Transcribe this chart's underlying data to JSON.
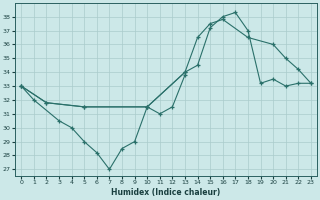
{
  "xlabel": "Humidex (Indice chaleur)",
  "background_color": "#cce8e8",
  "grid_color": "#aacccc",
  "line_color": "#2a706a",
  "xlim": [
    -0.5,
    23.5
  ],
  "ylim": [
    26.5,
    39.0
  ],
  "yticks": [
    27,
    28,
    29,
    30,
    31,
    32,
    33,
    34,
    35,
    36,
    37,
    38
  ],
  "xticks": [
    0,
    1,
    2,
    3,
    4,
    5,
    6,
    7,
    8,
    9,
    10,
    11,
    12,
    13,
    14,
    15,
    16,
    17,
    18,
    19,
    20,
    21,
    22,
    23
  ],
  "s1_x": [
    0,
    1,
    3,
    4,
    5,
    6,
    7,
    8,
    9,
    10,
    11,
    12,
    13
  ],
  "s1_y": [
    33,
    32,
    30.5,
    30,
    29,
    28.2,
    27,
    28.5,
    29.0,
    31.5,
    31,
    31.5,
    33.8
  ],
  "s2_x": [
    0,
    2,
    5,
    10,
    13,
    14,
    15,
    16,
    18,
    20,
    21,
    22,
    23
  ],
  "s2_y": [
    33,
    31.8,
    31.5,
    31.5,
    34.0,
    36.5,
    37.5,
    37.8,
    36.5,
    36.0,
    35.0,
    34.2,
    33.2
  ],
  "s3_x": [
    0,
    2,
    5,
    10,
    13,
    14,
    15,
    16,
    17,
    18,
    19,
    20,
    21,
    22,
    23
  ],
  "s3_y": [
    33,
    31.8,
    31.5,
    31.5,
    34.0,
    34.5,
    37.2,
    38.0,
    38.3,
    37.0,
    33.2,
    33.5,
    33.0,
    33.2,
    33.2
  ]
}
